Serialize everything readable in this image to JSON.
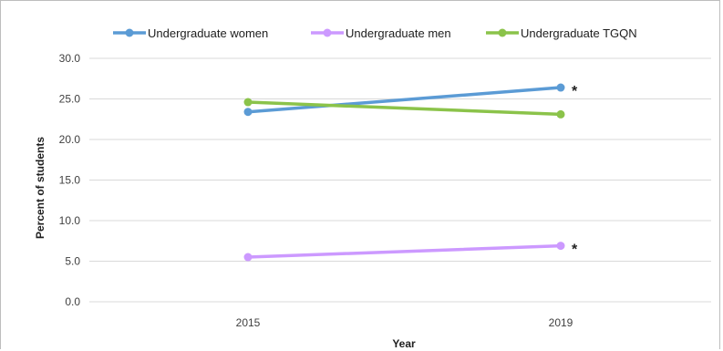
{
  "chart_data": {
    "type": "line",
    "xlabel": "Year",
    "ylabel": "Percent of students",
    "x": [
      "2015",
      "2019"
    ],
    "ylim": [
      0,
      30
    ],
    "yticks": [
      "0.0",
      "5.0",
      "10.0",
      "15.0",
      "20.0",
      "25.0",
      "30.0"
    ],
    "grid": true,
    "legend_position": "top",
    "series": [
      {
        "name": "Undergraduate women",
        "values": [
          23.4,
          26.4
        ],
        "color": "#5b9bd5",
        "annotation": [
          "",
          "*"
        ]
      },
      {
        "name": "Undergraduate men",
        "values": [
          5.5,
          6.9
        ],
        "color": "#cc99ff",
        "annotation": [
          "",
          "*"
        ]
      },
      {
        "name": "Undergraduate TGQN",
        "values": [
          24.6,
          23.1
        ],
        "color": "#8bc34a",
        "annotation": [
          "",
          ""
        ]
      }
    ]
  }
}
